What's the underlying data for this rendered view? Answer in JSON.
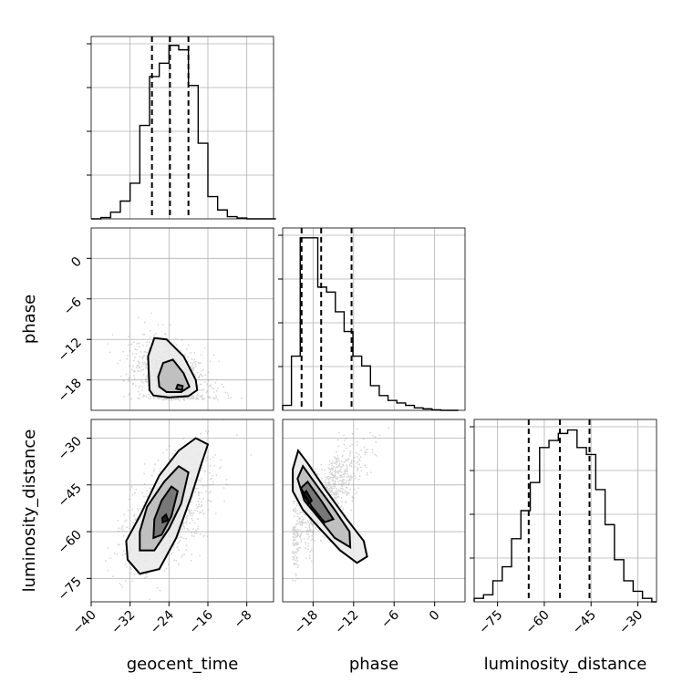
{
  "chart_data": {
    "type": "corner",
    "parameters": [
      "geocent_time",
      "phase",
      "luminosity_distance"
    ],
    "axes": {
      "geocent_time": {
        "label": "geocent_time",
        "range": [
          -40,
          -2.5
        ],
        "ticks": [
          -40,
          -32,
          -24,
          -16,
          -8
        ],
        "tick_labels": [
          "−40",
          "−32",
          "−24",
          "−16",
          "−8"
        ]
      },
      "phase": {
        "label": "phase",
        "range": [
          -22.5,
          4.5
        ],
        "ticks": [
          -18,
          -12,
          -6,
          0
        ],
        "tick_labels": [
          "−18",
          "−12",
          "−6",
          "0"
        ]
      },
      "luminosity_distance": {
        "label": "luminosity_distance",
        "range": [
          -82.5,
          -24
        ],
        "ticks": [
          -75,
          -60,
          -45,
          -30
        ],
        "tick_labels": [
          "−75",
          "−60",
          "−45",
          "−30"
        ]
      }
    },
    "histograms": [
      {
        "parameter": "geocent_time",
        "bin_edges": [
          -40,
          -38,
          -36,
          -34,
          -32,
          -30,
          -28,
          -26,
          -24,
          -22,
          -20,
          -18,
          -16,
          -14,
          -12,
          -10,
          -8,
          -6,
          -4,
          -2
        ],
        "counts": [
          0,
          0.3,
          1.5,
          4,
          8,
          21,
          32,
          35,
          39,
          38,
          30,
          17,
          5,
          2,
          0.5,
          0.2,
          0,
          0,
          0
        ],
        "ylim": [
          0,
          41
        ],
        "quantiles": [
          -27.5,
          -23.8,
          -20
        ]
      },
      {
        "parameter": "phase",
        "bin_edges": [
          -22.5,
          -21.2,
          -19.9,
          -18.6,
          -17.3,
          -16,
          -14.7,
          -13.4,
          -12.1,
          -10.8,
          -9.5,
          -8.2,
          -6.9,
          -5.6,
          -4.3,
          -3,
          -1.7,
          -0.4,
          0.9,
          2.2,
          3.5
        ],
        "counts": [
          1,
          11,
          35,
          35,
          25,
          24,
          20,
          16,
          11,
          9,
          5,
          3,
          2,
          1.5,
          1,
          0.5,
          0.3,
          0.1,
          0,
          0
        ],
        "ylim": [
          0,
          37
        ],
        "quantiles": [
          -19.7,
          -16.8,
          -12.3
        ]
      },
      {
        "parameter": "luminosity_distance",
        "bin_edges": [
          -82.5,
          -79.5,
          -76.5,
          -73.5,
          -70.5,
          -67.5,
          -64.5,
          -61.5,
          -58.5,
          -55.5,
          -52.5,
          -49.5,
          -46.5,
          -43.5,
          -40.5,
          -37.5,
          -34.5,
          -31.5,
          -28.5,
          -25.5,
          -24
        ],
        "counts": [
          0.5,
          1,
          3,
          5,
          9,
          13,
          17,
          22,
          23,
          24,
          24.5,
          22,
          21,
          16,
          11,
          6,
          3,
          1.5,
          0.5,
          0
        ],
        "ylim": [
          0,
          26
        ],
        "quantiles": [
          -65,
          -55,
          -45.5
        ]
      }
    ],
    "pairs": [
      {
        "x": "geocent_time",
        "y": "phase",
        "center": [
          -23.5,
          -17.5
        ],
        "spread": [
          4.2,
          2.6
        ],
        "correlation": -0.35,
        "y_min": -21,
        "contours": [
          [
            [
              -28,
              -19.5
            ],
            [
              -27.2,
              -20.3
            ],
            [
              -24,
              -20.6
            ],
            [
              -20,
              -20.4
            ],
            [
              -18.2,
              -19.5
            ],
            [
              -18.5,
              -18
            ],
            [
              -21,
              -14.5
            ],
            [
              -24.5,
              -12
            ],
            [
              -27,
              -11.8
            ],
            [
              -28.3,
              -14.5
            ]
          ],
          [
            [
              -26,
              -19
            ],
            [
              -24.5,
              -19.8
            ],
            [
              -21.5,
              -19.8
            ],
            [
              -19.8,
              -19
            ],
            [
              -21,
              -17
            ],
            [
              -23.2,
              -15
            ],
            [
              -25.2,
              -15.5
            ],
            [
              -26.2,
              -17.5
            ]
          ],
          [
            [
              -22.5,
              -19.3
            ],
            [
              -21.3,
              -19.5
            ],
            [
              -21.2,
              -18.9
            ],
            [
              -22.2,
              -18.7
            ]
          ]
        ]
      },
      {
        "x": "geocent_time",
        "y": "luminosity_distance",
        "center": [
          -24,
          -54
        ],
        "spread": [
          4.5,
          9
        ],
        "correlation": 0.5,
        "contours": [
          [
            [
              -32.5,
              -69
            ],
            [
              -30,
              -73.5
            ],
            [
              -26,
              -72
            ],
            [
              -22.5,
              -62
            ],
            [
              -19.5,
              -49
            ],
            [
              -17.3,
              -38
            ],
            [
              -16,
              -32
            ],
            [
              -18.5,
              -30
            ],
            [
              -22,
              -34
            ],
            [
              -26,
              -42
            ],
            [
              -30,
              -55
            ],
            [
              -32.8,
              -63
            ]
          ],
          [
            [
              -30,
              -66
            ],
            [
              -27,
              -66
            ],
            [
              -24,
              -59
            ],
            [
              -21.5,
              -51
            ],
            [
              -20,
              -41
            ],
            [
              -22,
              -39
            ],
            [
              -25,
              -44
            ],
            [
              -28.5,
              -52
            ],
            [
              -30,
              -60
            ]
          ],
          [
            [
              -27.2,
              -62
            ],
            [
              -25.5,
              -61
            ],
            [
              -23.5,
              -55
            ],
            [
              -22.2,
              -47
            ],
            [
              -23.5,
              -45.5
            ],
            [
              -25.5,
              -50
            ],
            [
              -27,
              -56
            ]
          ],
          [
            [
              -25.3,
              -57
            ],
            [
              -24.2,
              -56.3
            ],
            [
              -24.6,
              -54.5
            ],
            [
              -25.4,
              -55.6
            ]
          ]
        ]
      },
      {
        "x": "phase",
        "y": "luminosity_distance",
        "center": [
          -16.5,
          -50
        ],
        "spread": [
          3.2,
          9
        ],
        "correlation": 0.82,
        "x_min": -21,
        "contours": [
          [
            [
              -21,
              -40
            ],
            [
              -21,
              -47
            ],
            [
              -19.5,
              -53
            ],
            [
              -17,
              -59
            ],
            [
              -14,
              -66
            ],
            [
              -11.5,
              -70
            ],
            [
              -10,
              -68
            ],
            [
              -10.5,
              -63
            ],
            [
              -13,
              -56
            ],
            [
              -16,
              -47
            ],
            [
              -18.8,
              -38
            ],
            [
              -20.2,
              -34
            ]
          ],
          [
            [
              -20.3,
              -43
            ],
            [
              -19.3,
              -50
            ],
            [
              -17,
              -56
            ],
            [
              -14.8,
              -62
            ],
            [
              -12.5,
              -65
            ],
            [
              -12.6,
              -60
            ],
            [
              -14.8,
              -53
            ],
            [
              -17.5,
              -45
            ],
            [
              -19.5,
              -39
            ]
          ],
          [
            [
              -19.8,
              -46
            ],
            [
              -18.2,
              -52
            ],
            [
              -16.3,
              -57
            ],
            [
              -15,
              -56
            ],
            [
              -16.8,
              -50
            ],
            [
              -18.8,
              -44
            ]
          ],
          [
            [
              -19.5,
              -48
            ],
            [
              -18.6,
              -51
            ],
            [
              -18.2,
              -50
            ],
            [
              -19,
              -47
            ]
          ]
        ]
      }
    ],
    "grid": true
  }
}
